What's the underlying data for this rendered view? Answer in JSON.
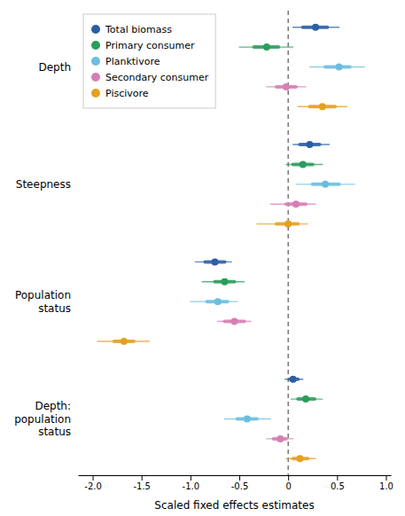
{
  "chart_data": {
    "type": "forest",
    "orientation": "horizontal",
    "xlabel": "Scaled fixed effects estimates",
    "categories": [
      "Depth",
      "Steepness",
      "Population\nstatus",
      "Depth:\npopulation\nstatus"
    ],
    "series": [
      {
        "name": "Total biomass",
        "color": "#2b5fa5",
        "values": [
          0.28,
          0.22,
          -0.75,
          0.05
        ],
        "ci_inner": [
          [
            0.15,
            0.4
          ],
          [
            0.12,
            0.32
          ],
          [
            -0.85,
            -0.65
          ],
          [
            0.02,
            0.1
          ]
        ],
        "ci_outer": [
          [
            0.05,
            0.52
          ],
          [
            0.05,
            0.42
          ],
          [
            -0.95,
            -0.58
          ],
          [
            -0.03,
            0.15
          ]
        ]
      },
      {
        "name": "Primary consumer",
        "color": "#2a9d5c",
        "values": [
          -0.22,
          0.15,
          -0.65,
          0.18
        ],
        "ci_inner": [
          [
            -0.35,
            -0.1
          ],
          [
            0.05,
            0.25
          ],
          [
            -0.75,
            -0.55
          ],
          [
            0.1,
            0.27
          ]
        ],
        "ci_outer": [
          [
            -0.5,
            0.05
          ],
          [
            -0.02,
            0.35
          ],
          [
            -0.88,
            -0.45
          ],
          [
            0.03,
            0.35
          ]
        ]
      },
      {
        "name": "Planktivore",
        "color": "#6bbde0",
        "values": [
          0.52,
          0.38,
          -0.72,
          -0.42
        ],
        "ci_inner": [
          [
            0.38,
            0.63
          ],
          [
            0.25,
            0.52
          ],
          [
            -0.83,
            -0.62
          ],
          [
            -0.52,
            -0.32
          ]
        ],
        "ci_outer": [
          [
            0.22,
            0.78
          ],
          [
            0.08,
            0.68
          ],
          [
            -1.0,
            -0.52
          ],
          [
            -0.65,
            -0.18
          ]
        ]
      },
      {
        "name": "Secondary consumer",
        "color": "#d67eb4",
        "values": [
          -0.02,
          0.08,
          -0.55,
          -0.08
        ],
        "ci_inner": [
          [
            -0.12,
            0.08
          ],
          [
            -0.02,
            0.18
          ],
          [
            -0.65,
            -0.45
          ],
          [
            -0.15,
            -0.02
          ]
        ],
        "ci_outer": [
          [
            -0.22,
            0.18
          ],
          [
            -0.18,
            0.28
          ],
          [
            -0.72,
            -0.38
          ],
          [
            -0.22,
            0.05
          ]
        ]
      },
      {
        "name": "Piscivore",
        "color": "#e5a020",
        "values": [
          0.35,
          0.0,
          -1.68,
          0.12
        ],
        "ci_inner": [
          [
            0.22,
            0.48
          ],
          [
            -0.12,
            0.1
          ],
          [
            -1.78,
            -1.58
          ],
          [
            0.05,
            0.2
          ]
        ],
        "ci_outer": [
          [
            0.1,
            0.6
          ],
          [
            -0.32,
            0.2
          ],
          [
            -1.95,
            -1.42
          ],
          [
            -0.02,
            0.28
          ]
        ]
      }
    ],
    "xlim": [
      -2.15,
      1.05
    ],
    "xticks": [
      {
        "value": -2,
        "label": "-2.0"
      },
      -1.5,
      {
        "value": -1,
        "label": "-1.0"
      },
      -0.5,
      0,
      0.5,
      {
        "value": 1,
        "label": "1.0"
      }
    ],
    "reference_line_x": 0,
    "legend": "upper left",
    "grid": false
  }
}
